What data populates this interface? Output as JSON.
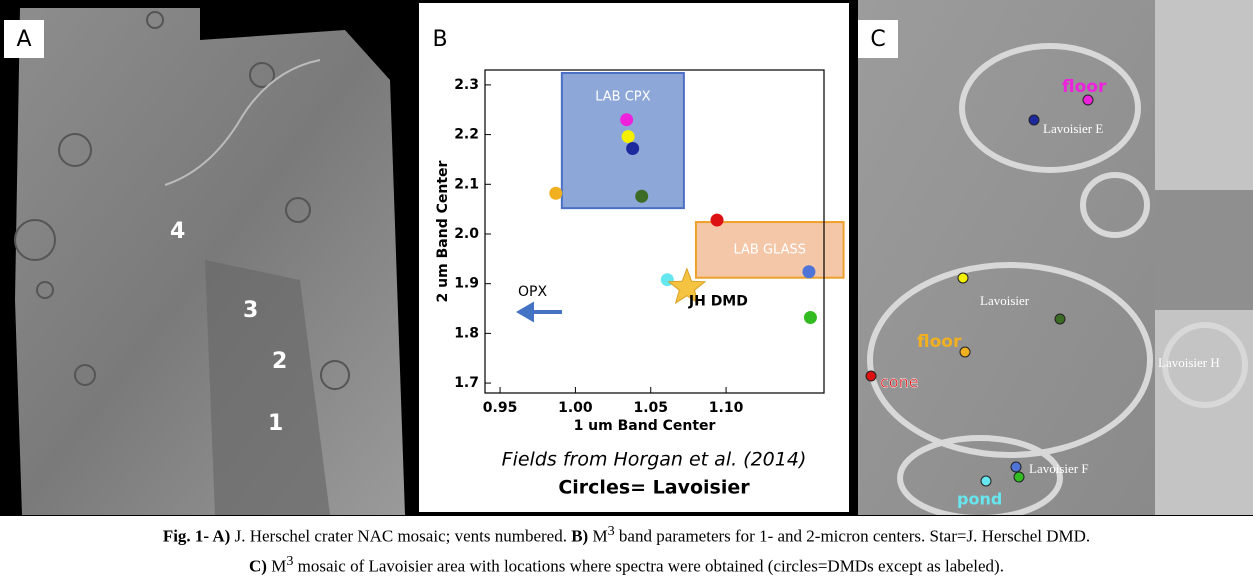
{
  "panels": {
    "A": {
      "label": "A",
      "vents": [
        "4",
        "3",
        "2",
        "1"
      ]
    },
    "B": {
      "label": "B",
      "note": "Fields from Horgan et al. (2014)",
      "legend_note": "Circles= Lavoisier"
    },
    "C": {
      "label": "C",
      "labels": [
        "floor",
        "Lavoisier E",
        "Lavoisier",
        "floor",
        "cone",
        "Lavoisier H",
        "Lavoisier F",
        "pond"
      ]
    }
  },
  "chart_data": {
    "type": "scatter",
    "xlabel": "1 um Band Center",
    "ylabel": "2 um Band Center",
    "x": [
      1.034,
      1.035,
      1.038,
      1.044,
      0.987,
      1.094,
      1.061,
      1.155,
      1.156
    ],
    "values": [
      2.23,
      2.196,
      2.172,
      2.076,
      2.082,
      2.028,
      1.908,
      1.924,
      1.832
    ],
    "colors": [
      "#ee22dd",
      "#f4f000",
      "#1c2a9e",
      "#3b6b24",
      "#f0b020",
      "#dd1111",
      "#66e6ee",
      "#4f73d6",
      "#33bb22"
    ],
    "star": {
      "x": 1.074,
      "y": 1.892,
      "label": "JH DMD",
      "color": "#f5c342"
    },
    "regions": [
      {
        "label": "LAB CPX",
        "x": [
          0.991,
          1.072
        ],
        "y": [
          2.052,
          2.324
        ],
        "color": "#8ea7d9",
        "edge": "#4a6fc4"
      },
      {
        "label": "LAB GLASS",
        "x": [
          1.08,
          1.178
        ],
        "y": [
          1.912,
          2.024
        ],
        "color": "#f4c7a8",
        "edge": "#eda02a"
      }
    ],
    "annotation": "OPX",
    "xlim": [
      0.94,
      1.165
    ],
    "ylim": [
      1.68,
      2.33
    ],
    "xticks": [
      0.95,
      {
        "value": 1,
        "label": "1.00"
      },
      1.05,
      {
        "value": 1.1,
        "label": "1.10"
      }
    ],
    "yticks": [
      1.7,
      1.8,
      1.9,
      {
        "value": 2,
        "label": "2.0"
      },
      2.1,
      2.2,
      2.3
    ],
    "grid": false
  },
  "caption": {
    "line1": [
      "Fig. 1- A)",
      " J. Herschel crater NAC mosaic; vents numbered. ",
      "B)",
      " M",
      "3",
      " band parameters for 1- and 2-micron centers. Star=J. Herschel DMD."
    ],
    "line2": [
      "C)",
      " M",
      "3",
      " mosaic of Lavoisier area with locations where spectra were obtained (circles=DMDs except as labeled)."
    ]
  }
}
